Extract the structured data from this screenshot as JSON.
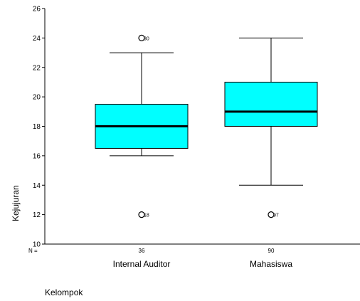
{
  "chart_data": {
    "type": "boxplot",
    "title": "",
    "xlabel": "Kelompok",
    "ylabel": "Kejujuran",
    "ylim": [
      10,
      26
    ],
    "yticks": [
      "10",
      "12",
      "14",
      "16",
      "18",
      "20",
      "22",
      "24",
      "26"
    ],
    "n_prefix": "N =",
    "grid": false,
    "legend": "none",
    "box_color": "#00ffff",
    "categories": [
      "Internal Auditor",
      "Mahasiswa"
    ],
    "groups": [
      {
        "name": "Internal Auditor",
        "n": "36",
        "whisker_low": 16,
        "q1": 16.5,
        "median": 18,
        "q3": 19.5,
        "whisker_high": 23,
        "outliers": [
          {
            "value": 24,
            "label": "30"
          },
          {
            "value": 12,
            "label": "18"
          }
        ]
      },
      {
        "name": "Mahasiswa",
        "n": "90",
        "whisker_low": 14,
        "q1": 18,
        "median": 19,
        "q3": 21,
        "whisker_high": 24,
        "outliers": [
          {
            "value": 12,
            "label": "97"
          }
        ]
      }
    ]
  }
}
